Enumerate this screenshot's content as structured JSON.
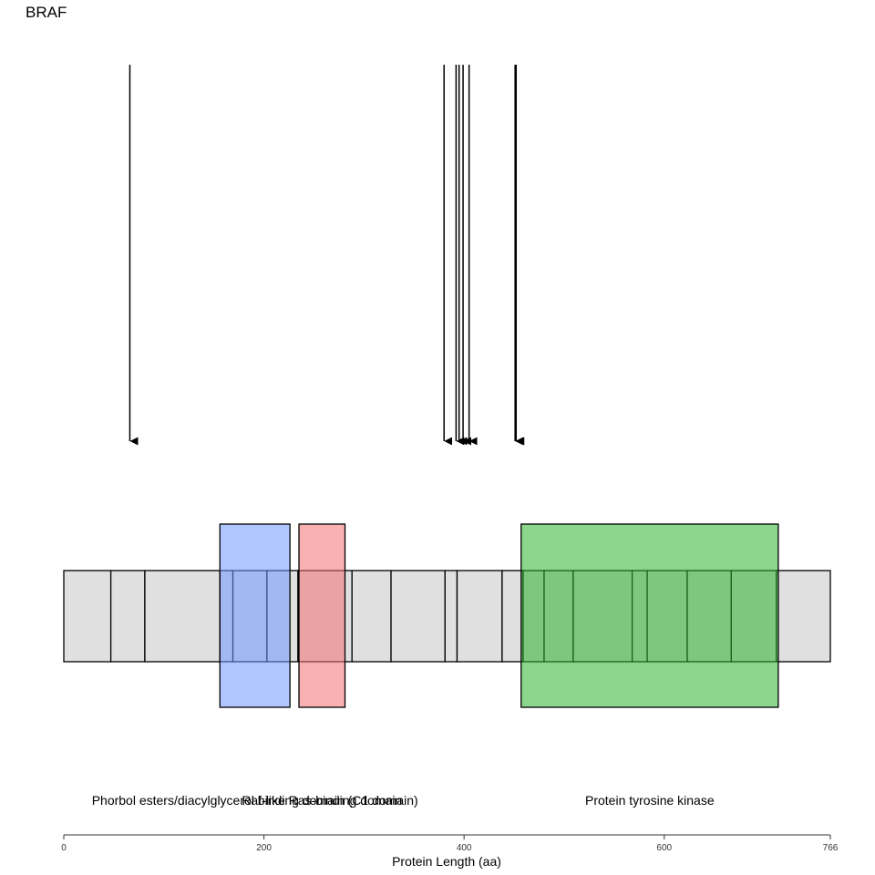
{
  "title": "BRAF",
  "xlabel": "Protein Length (aa)",
  "protein_length": 766,
  "ticks": [
    0,
    200,
    400,
    600,
    766
  ],
  "exon_boundaries": [
    0,
    47,
    81,
    156,
    169,
    203,
    234,
    288,
    327,
    381,
    393,
    438,
    459,
    480,
    509,
    568,
    583,
    623,
    667,
    712,
    766
  ],
  "domains": [
    {
      "name": "Phorbol esters/diacylglycerol binding domain (C1 domain)",
      "start": 156,
      "end": 226,
      "color": "#6f97ff"
    },
    {
      "name": "Raf-like Ras-binding domain",
      "start": 235,
      "end": 281,
      "color": "#f36f6f"
    },
    {
      "name": "Protein tyrosine kinase",
      "start": 457,
      "end": 714,
      "color": "#2db52d"
    }
  ],
  "mutations": [
    66,
    380,
    392,
    395,
    399,
    405,
    451,
    452
  ]
}
